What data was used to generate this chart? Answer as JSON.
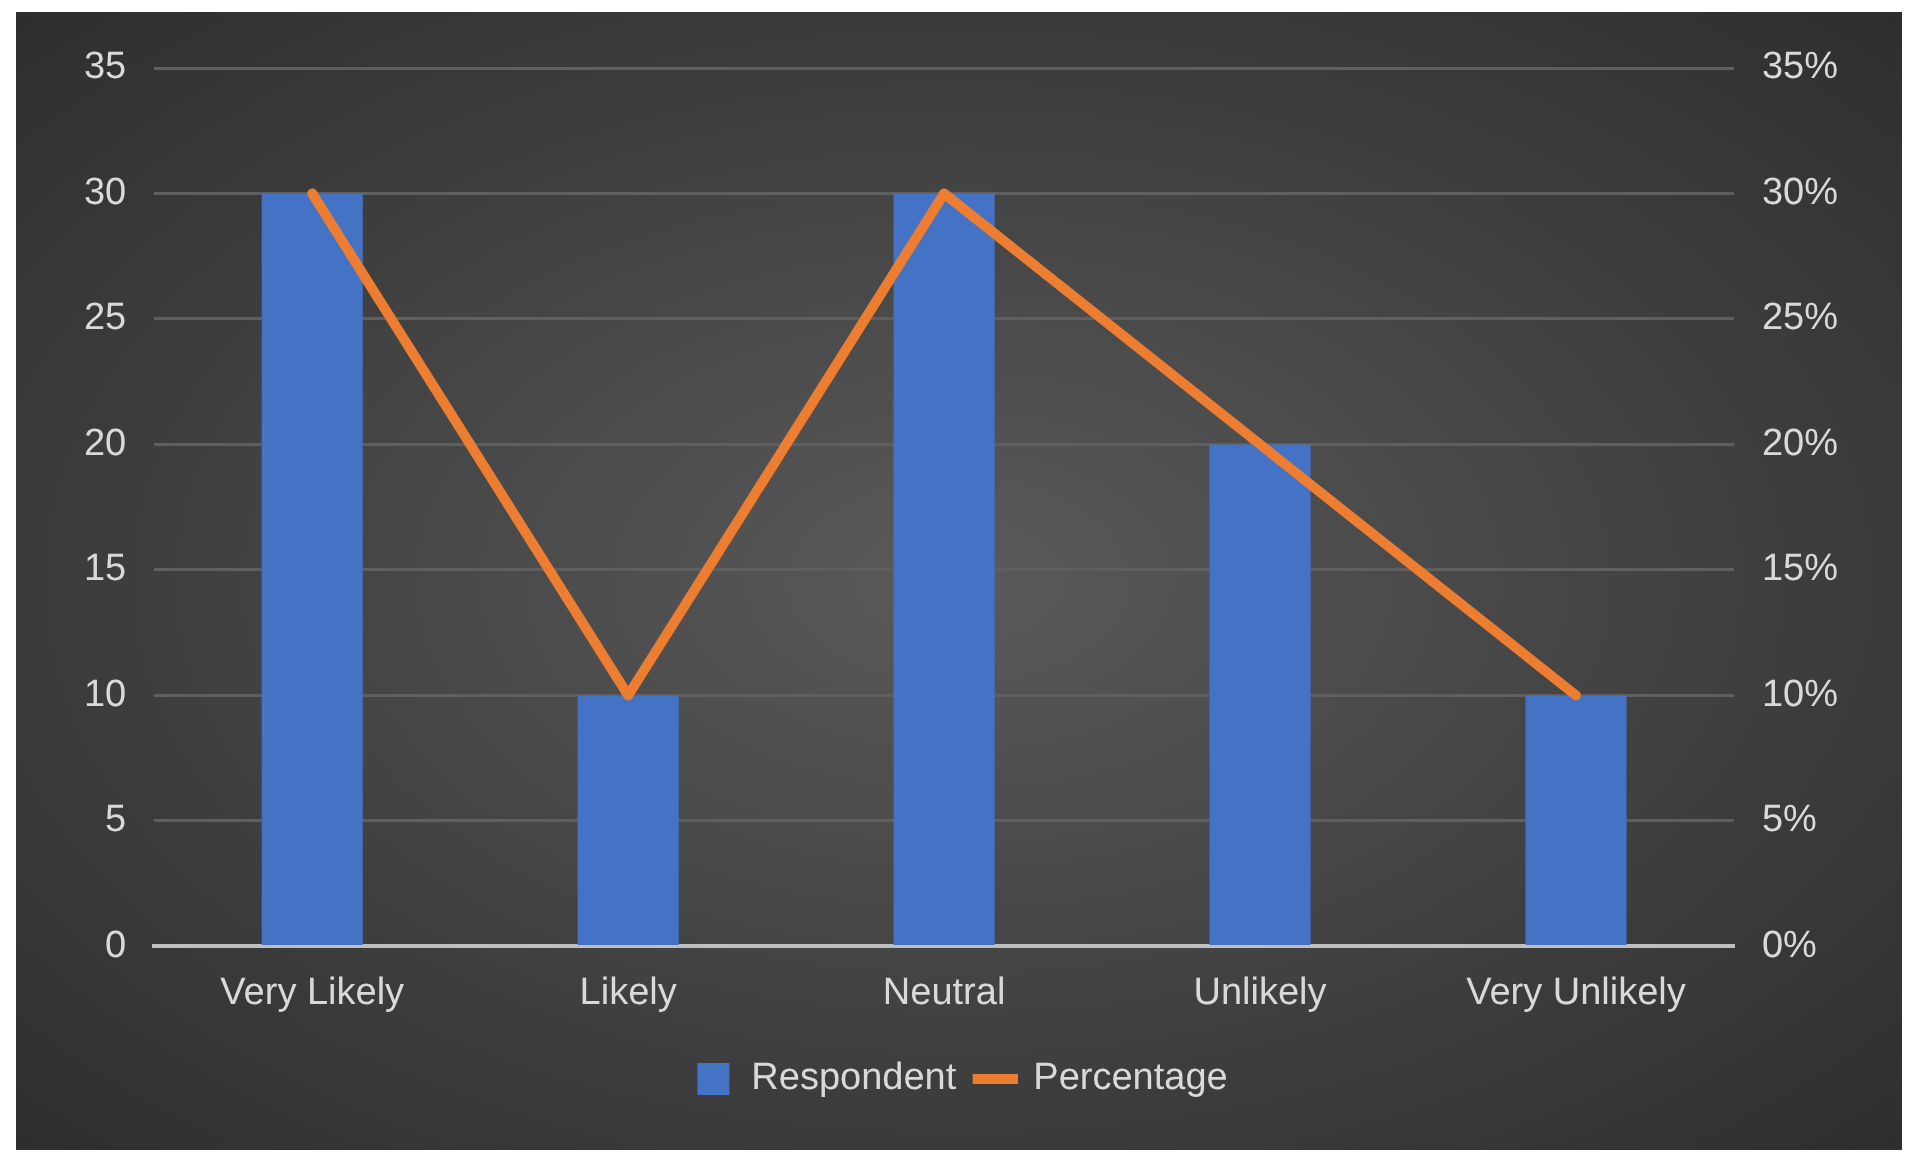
{
  "chart_data": {
    "type": "bar",
    "categories": [
      "Very Likely",
      "Likely",
      "Neutral",
      "Unlikely",
      "Very Unlikely"
    ],
    "series": [
      {
        "name": "Respondent",
        "color": "#4472c4",
        "values": [
          30,
          10,
          30,
          20,
          10
        ]
      },
      {
        "name": "Percentage",
        "type": "line",
        "axis": "y2",
        "color": "#ed7d31",
        "values": [
          30,
          10,
          30,
          20,
          10
        ]
      }
    ],
    "ylim": [
      0,
      35
    ],
    "yticks": [
      0,
      5,
      10,
      15,
      20,
      25,
      30,
      35
    ],
    "y2lim": [
      0,
      35
    ],
    "y2ticks": [
      {
        "value": 0,
        "label": "0%"
      },
      {
        "value": 5,
        "label": "5%"
      },
      {
        "value": 10,
        "label": "10%"
      },
      {
        "value": 15,
        "label": "15%"
      },
      {
        "value": 20,
        "label": "20%"
      },
      {
        "value": 25,
        "label": "25%"
      },
      {
        "value": 30,
        "label": "30%"
      },
      {
        "value": 35,
        "label": "35%"
      }
    ],
    "grid": "y",
    "legend": "bottom",
    "marker": "none",
    "line_style": "solid"
  }
}
